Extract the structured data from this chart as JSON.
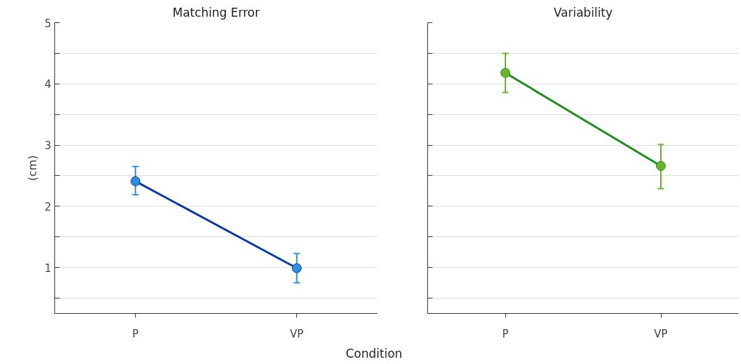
{
  "chart_data": [
    {
      "type": "line",
      "title": "Matching Error",
      "ylabel": "(cm)",
      "xlabel": "Condition",
      "categories": [
        "P",
        "VP"
      ],
      "series": [
        {
          "color": "#0a3aa0",
          "colors": [
            "#2f8ee0",
            "#2f8ee0"
          ],
          "values": [
            2.41,
            0.99
          ],
          "errors": [
            [
              2.19,
              2.65
            ],
            [
              0.75,
              1.23
            ]
          ]
        }
      ],
      "ylim": [
        0.25,
        5
      ],
      "yticks": [
        {
          "value": 0.5,
          "label": null
        },
        1,
        {
          "value": 1.5,
          "label": null
        },
        2,
        {
          "value": 2.5,
          "label": null
        },
        3,
        {
          "value": 3.5,
          "label": null
        },
        4,
        {
          "value": 4.5,
          "label": null
        },
        5
      ],
      "grid": "y",
      "marker": "circle",
      "line_style": "solid"
    },
    {
      "type": "line",
      "title": "Variability",
      "categories": [
        "P",
        "VP"
      ],
      "series": [
        {
          "color": "#1e8c1e",
          "colors": [
            "#6ab42a",
            "#6ab42a"
          ],
          "values": [
            4.18,
            2.66
          ],
          "errors": [
            [
              3.86,
              4.5
            ],
            [
              2.29,
              3.01
            ]
          ]
        }
      ],
      "ylim": [
        0.25,
        5
      ],
      "yticks": [
        {
          "value": 0.5,
          "label": null
        },
        1,
        {
          "value": 1.5,
          "label": null
        },
        2,
        {
          "value": 2.5,
          "label": null
        },
        3,
        {
          "value": 3.5,
          "label": null
        },
        4,
        {
          "value": 4.5,
          "label": null
        },
        5
      ],
      "grid": "y",
      "marker": "circle",
      "line_style": "solid",
      "tick_labels": "x"
    }
  ]
}
